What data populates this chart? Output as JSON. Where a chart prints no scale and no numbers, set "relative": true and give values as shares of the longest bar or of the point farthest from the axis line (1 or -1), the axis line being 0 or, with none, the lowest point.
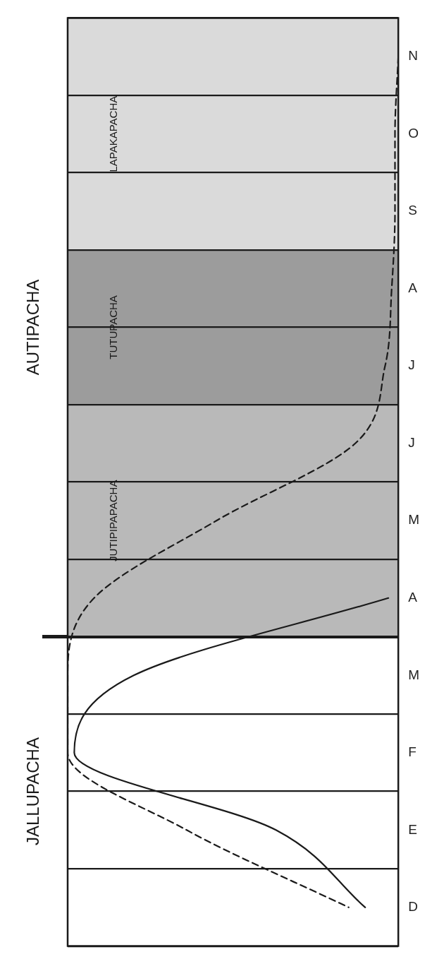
{
  "chart_data": {
    "type": "line",
    "orientation": "horizontal",
    "relative": true,
    "categories": [
      "N",
      "O",
      "S",
      "A",
      "J",
      "J",
      "M",
      "A",
      "M",
      "F",
      "E",
      "D"
    ],
    "grid": true,
    "marker": "none",
    "series": [
      {
        "color": "#1a1a1a",
        "line_style": "solid",
        "values": [
          null,
          null,
          null,
          null,
          null,
          null,
          null,
          0.97,
          0.2,
          0.02,
          0.63,
          0.9
        ]
      },
      {
        "color": "#1a1a1a",
        "line_style": "dashed",
        "values": [
          1.0,
          0.99,
          0.99,
          0.98,
          0.96,
          0.87,
          0.45,
          0.08,
          0,
          0,
          0.36,
          0.85
        ]
      }
    ],
    "annotations": [
      "JALLUPACHA",
      "AUTIPACHA",
      "JUTIPIPAPACHA",
      "TUTUPACHA",
      "LAPAKAPACHA"
    ]
  }
}
